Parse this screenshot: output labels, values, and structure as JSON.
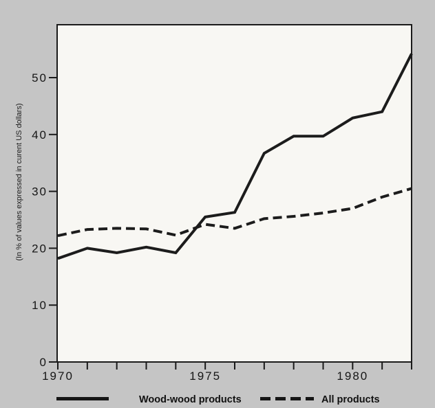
{
  "figure": {
    "title": "",
    "ylabel": "(In % of values expressed in curent US dollars)"
  },
  "legend": {
    "items": [
      {
        "label": "Wood-wood products",
        "swatch": "solid"
      },
      {
        "label": "All products",
        "swatch": "dashed"
      }
    ]
  },
  "chart_data": {
    "type": "line",
    "title": "",
    "xlabel": "",
    "ylabel": "(In % of values expressed in curent US dollars)",
    "x": [
      1970,
      1971,
      1972,
      1973,
      1974,
      1975,
      1976,
      1977,
      1978,
      1979,
      1980,
      1981,
      1982
    ],
    "series": [
      {
        "name": "Wood-wood products",
        "line_style": "solid",
        "values": [
          18.2,
          20,
          19.2,
          20.2,
          19.2,
          25.5,
          26.3,
          36.7,
          39.7,
          39.7,
          42.9,
          44,
          54.2
        ]
      },
      {
        "name": "All products",
        "line_style": "dashed",
        "values": [
          22.2,
          23.3,
          23.5,
          23.4,
          22.3,
          24.2,
          23.5,
          25.2,
          25.6,
          26.2,
          27,
          29,
          30.5
        ]
      }
    ],
    "xlim": [
      1970,
      1982
    ],
    "ylim": [
      0,
      59.3
    ],
    "yticks": [
      0,
      10,
      20,
      30,
      40,
      50
    ],
    "xticks_every_year": true,
    "xtick_years_labeled": [
      1970,
      1975,
      1980
    ],
    "grid": false,
    "legend_position": "bottom",
    "line_color": "#1c1c1c",
    "background_color": "#c5c5c5",
    "plot_background_color": "#f8f7f3"
  }
}
